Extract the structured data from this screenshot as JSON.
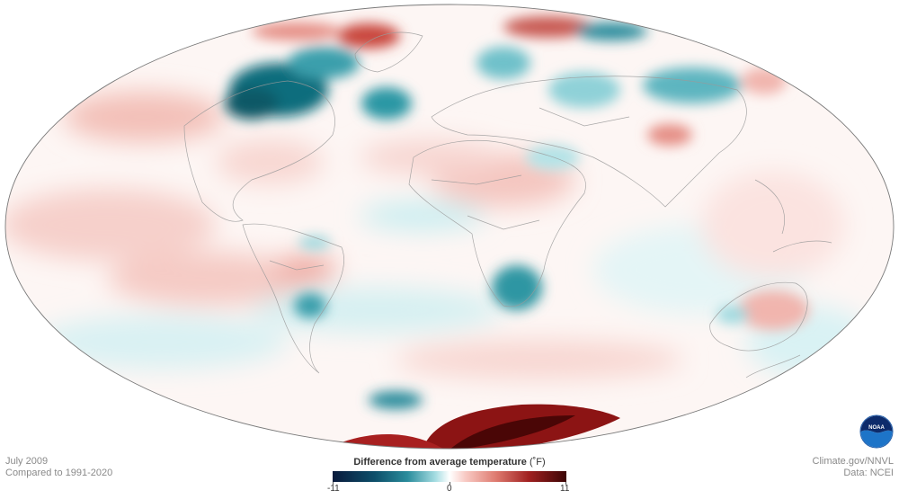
{
  "caption": {
    "date": "July 2009",
    "baseline": "Compared to 1991-2020",
    "credit": "Climate.gov/NNVL",
    "data_source": "Data: NCEI"
  },
  "legend": {
    "title": "Difference from average temperature",
    "unit": "(˚F)",
    "min_label": "-11",
    "mid_label": "0",
    "max_label": "11",
    "colors": [
      "#0a1a3c",
      "#2a8c9c",
      "#ffffff",
      "#de7a6f",
      "#3c0505"
    ]
  },
  "logo": {
    "text": "NOAA",
    "icon": "noaa-logo-icon"
  },
  "colors": {
    "warm": "#d9736a",
    "cold": "#1d7e8c",
    "border": "#9a9a9a"
  }
}
